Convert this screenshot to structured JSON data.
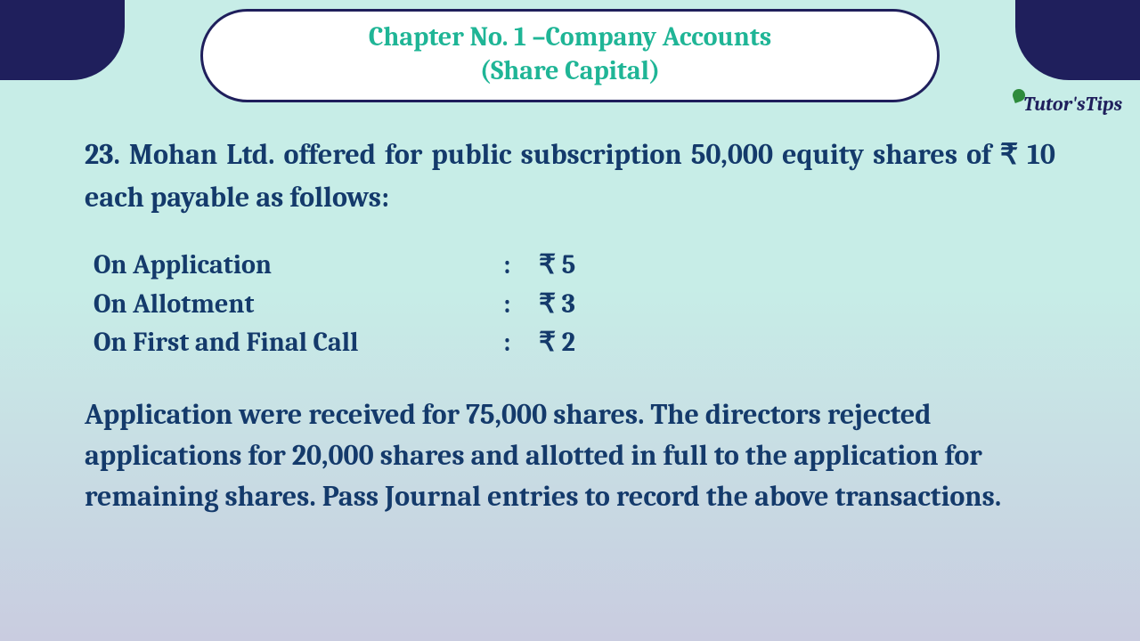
{
  "colors": {
    "header_accent": "#1fb596",
    "body_text": "#143a6b",
    "corner_bg": "#1f1f5c",
    "pill_bg": "#ffffff",
    "page_bg_top": "#c7ede7",
    "page_bg_bottom": "#c9cce0"
  },
  "typography": {
    "title_fontsize": 30,
    "body_fontsize": 32,
    "table_fontsize": 30,
    "font_family": "Cambria / serif",
    "font_weight": "bold"
  },
  "header": {
    "line1": "Chapter No. 1 –Company Accounts",
    "line2": "(Share Capital)"
  },
  "logo": {
    "part1": "Tutor's",
    "part2": "Tips"
  },
  "question": {
    "number": "23.",
    "intro": "23. Mohan Ltd. offered for public subscription 50,000 equity shares of ₹ 10 each payable as follows:",
    "payments": [
      {
        "label": "On Application",
        "amount": "₹ 5"
      },
      {
        "label": "On Allotment",
        "amount": "₹ 3"
      },
      {
        "label": "On First and Final Call",
        "amount": "₹ 2"
      }
    ],
    "colon": ":",
    "body": "Application were received for 75,000 shares. The directors rejected applications for 20,000 shares and allotted in full to the application for remaining shares. Pass Journal entries to record the above transactions."
  }
}
